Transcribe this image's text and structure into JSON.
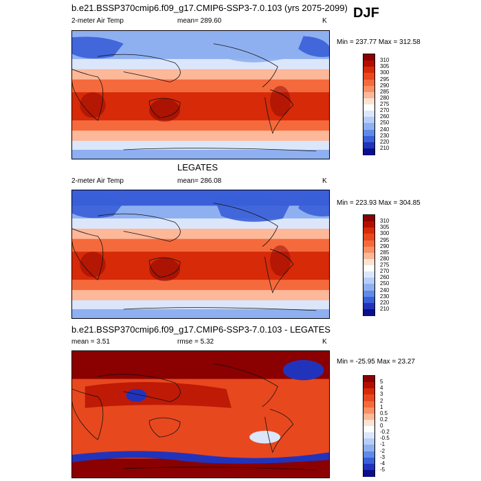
{
  "season": "DJF",
  "panel1": {
    "title": "b.e21.BSSP370cmip6.f09_g17.CMIP6-SSP3-7.0.103 (yrs 2075-2099)",
    "variable": "2-meter Air Temp",
    "mean_text": "mean= 289.60",
    "units": "K",
    "minmax": "Min = 237.77 Max = 312.58"
  },
  "panel2": {
    "title": "LEGATES",
    "variable": "2-meter Air Temp",
    "mean_text": "mean= 286.08",
    "units": "K",
    "minmax": "Min = 223.93 Max = 304.85"
  },
  "panel3": {
    "title": "b.e21.BSSP370cmip6.f09_g17.CMIP6-SSP3-7.0.103 - LEGATES",
    "mean_text": "mean =   3.51",
    "rmse_text": "rmse =   5.32",
    "units": "K",
    "minmax": "Min = -25.95 Max =  23.27"
  },
  "colorbar_abs": {
    "labels": [
      "310",
      "305",
      "300",
      "295",
      "290",
      "285",
      "280",
      "275",
      "270",
      "260",
      "250",
      "240",
      "230",
      "220",
      "210"
    ],
    "colors": [
      "#8b0000",
      "#b30f00",
      "#d62a08",
      "#e8481e",
      "#f56a3c",
      "#fb8f63",
      "#fcb899",
      "#fde3d3",
      "#ffffff",
      "#dbe6fb",
      "#b6cdf7",
      "#8fb0f0",
      "#5f8ae8",
      "#3a5fd8",
      "#2233bb",
      "#0a0f8c"
    ]
  },
  "colorbar_diff": {
    "labels": [
      "5",
      "4",
      "3",
      "2",
      "1",
      "0.5",
      "0.2",
      "0",
      "-0.2",
      "-0.5",
      "-1",
      "-2",
      "-3",
      "-4",
      "-5"
    ],
    "colors": [
      "#8b0000",
      "#b30f00",
      "#d62a08",
      "#e8481e",
      "#f56a3c",
      "#fb8f63",
      "#fcb899",
      "#fde3d3",
      "#ffffff",
      "#dbe6fb",
      "#b6cdf7",
      "#8fb0f0",
      "#5f8ae8",
      "#3a5fd8",
      "#2233bb",
      "#0a0f8c"
    ]
  },
  "map_colors": {
    "polar_cold": "#3a5fd8",
    "cool": "#8fb0f0",
    "mild": "#dbe6fb",
    "temperate": "#fcb899",
    "warm": "#f56a3c",
    "hot": "#d62a08",
    "diff_high": "#b30f00",
    "diff_mid": "#e8481e",
    "diff_blue": "#2233bb",
    "diff_dark": "#8b0000"
  }
}
